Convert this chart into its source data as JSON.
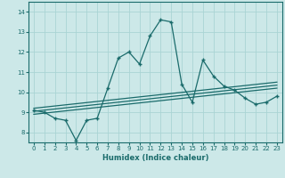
{
  "xlabel": "Humidex (Indice chaleur)",
  "ylabel": "",
  "bg_color": "#cce8e8",
  "grid_color": "#aad4d4",
  "line_color": "#1a6b6b",
  "xlim": [
    -0.5,
    23.5
  ],
  "ylim": [
    7.5,
    14.5
  ],
  "yticks": [
    8,
    9,
    10,
    11,
    12,
    13,
    14
  ],
  "xticks": [
    0,
    1,
    2,
    3,
    4,
    5,
    6,
    7,
    8,
    9,
    10,
    11,
    12,
    13,
    14,
    15,
    16,
    17,
    18,
    19,
    20,
    21,
    22,
    23
  ],
  "main_series": {
    "x": [
      0,
      1,
      2,
      3,
      4,
      5,
      6,
      7,
      8,
      9,
      10,
      11,
      12,
      13,
      14,
      15,
      16,
      17,
      18,
      19,
      20,
      21,
      22,
      23
    ],
    "y": [
      9.1,
      9.0,
      8.7,
      8.6,
      7.6,
      8.6,
      8.7,
      10.2,
      11.7,
      12.0,
      11.4,
      12.8,
      13.6,
      13.5,
      10.4,
      9.5,
      11.6,
      10.8,
      10.3,
      10.1,
      9.7,
      9.4,
      9.5,
      9.8
    ]
  },
  "regression_lines": [
    {
      "x0": 0,
      "y0": 8.9,
      "x1": 23,
      "y1": 10.2
    },
    {
      "x0": 0,
      "y0": 9.05,
      "x1": 23,
      "y1": 10.35
    },
    {
      "x0": 0,
      "y0": 9.2,
      "x1": 23,
      "y1": 10.5
    }
  ]
}
